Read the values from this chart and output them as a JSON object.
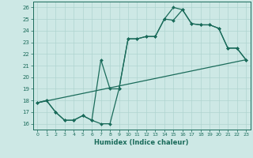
{
  "xlabel": "Humidex (Indice chaleur)",
  "background_color": "#cde8e5",
  "grid_color": "#afd4d0",
  "line_color": "#1a6b5a",
  "xlim": [
    -0.5,
    23.5
  ],
  "ylim": [
    15.5,
    26.5
  ],
  "xticks": [
    0,
    1,
    2,
    3,
    4,
    5,
    6,
    7,
    8,
    9,
    10,
    11,
    12,
    13,
    14,
    15,
    16,
    17,
    18,
    19,
    20,
    21,
    22,
    23
  ],
  "yticks": [
    16,
    17,
    18,
    19,
    20,
    21,
    22,
    23,
    24,
    25,
    26
  ],
  "line1_x": [
    0,
    1,
    2,
    3,
    4,
    5,
    6,
    7,
    8,
    9,
    10,
    11,
    12,
    13,
    14,
    15,
    16,
    17,
    18,
    19,
    20,
    21,
    22,
    23
  ],
  "line1_y": [
    17.8,
    18.0,
    17.0,
    16.3,
    16.3,
    16.7,
    16.3,
    16.0,
    16.0,
    19.0,
    23.3,
    23.3,
    23.5,
    23.5,
    25.0,
    24.9,
    25.8,
    24.6,
    24.5,
    24.5,
    24.2,
    22.5,
    22.5,
    21.5
  ],
  "line2_x": [
    0,
    1,
    2,
    3,
    4,
    5,
    6,
    7,
    8,
    9,
    10,
    11,
    12,
    13,
    14,
    15,
    16,
    17,
    18,
    19,
    20,
    21,
    22,
    23
  ],
  "line2_y": [
    17.8,
    18.0,
    17.0,
    16.3,
    16.3,
    16.7,
    16.3,
    21.5,
    19.0,
    19.0,
    23.3,
    23.3,
    23.5,
    23.5,
    25.0,
    26.0,
    25.8,
    24.6,
    24.5,
    24.5,
    24.2,
    22.5,
    22.5,
    21.5
  ],
  "line3_x": [
    0,
    23
  ],
  "line3_y": [
    17.8,
    21.5
  ]
}
